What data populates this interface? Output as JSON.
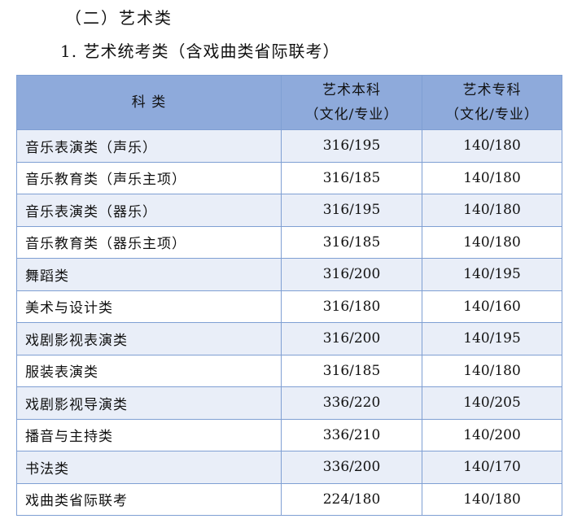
{
  "section_title": "（二）艺术类",
  "subsection_title": "1. 艺术统考类（含戏曲类省际联考）",
  "table": {
    "header": [
      [
        "科  类"
      ],
      [
        "艺术本科",
        "（文化/专业）"
      ],
      [
        "艺术专科",
        "（文化/专业）"
      ]
    ],
    "rows": [
      [
        "音乐表演类（声乐）",
        "316/195",
        "140/180"
      ],
      [
        "音乐教育类（声乐主项）",
        "316/185",
        "140/180"
      ],
      [
        "音乐表演类（器乐）",
        "316/195",
        "140/180"
      ],
      [
        "音乐教育类（器乐主项）",
        "316/185",
        "140/180"
      ],
      [
        "舞蹈类",
        "316/200",
        "140/195"
      ],
      [
        "美术与设计类",
        "316/180",
        "140/160"
      ],
      [
        "戏剧影视表演类",
        "316/200",
        "140/195"
      ],
      [
        "服装表演类",
        "316/185",
        "140/180"
      ],
      [
        "戏剧影视导演类",
        "336/220",
        "140/205"
      ],
      [
        "播音与主持类",
        "336/210",
        "140/200"
      ],
      [
        "书法类",
        "336/200",
        "140/170"
      ],
      [
        "戏曲类省际联考",
        "224/180",
        "140/180"
      ]
    ]
  }
}
